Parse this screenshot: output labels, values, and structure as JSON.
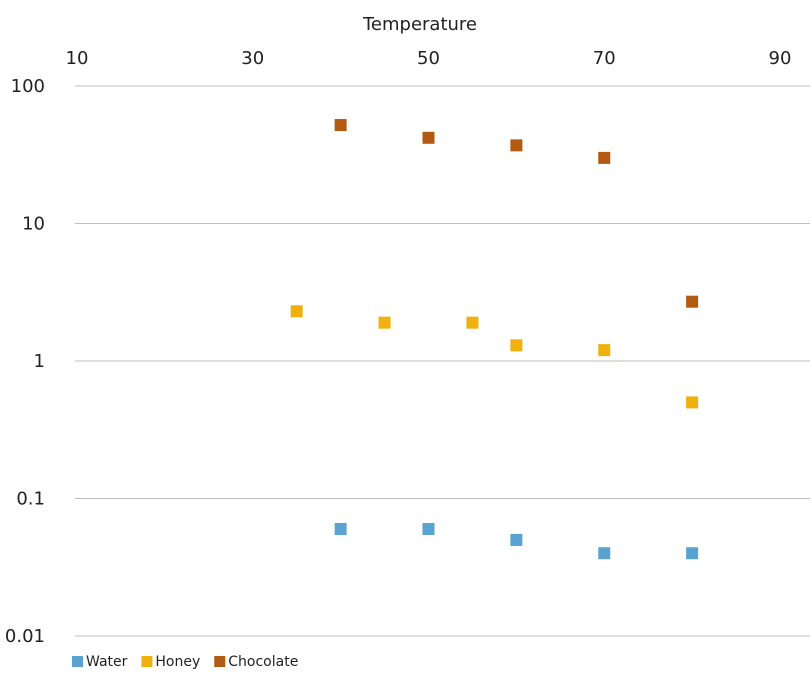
{
  "chart_data": {
    "type": "scatter",
    "xlabel": "Temperature",
    "ylabel": "",
    "x_axis_position": "top",
    "xlim": [
      10,
      90
    ],
    "x_ticks": [
      10,
      30,
      50,
      70,
      90
    ],
    "x_tick_labels": [
      "10",
      "30",
      "50",
      "70",
      "90"
    ],
    "y_scale": "log",
    "ylim": [
      0.01,
      100
    ],
    "y_ticks": [
      0.01,
      0.1,
      1,
      10,
      100
    ],
    "y_tick_labels": [
      "0.01",
      "0.1",
      "1",
      "10",
      "100"
    ],
    "grid": "horizontal",
    "legend_position": "bottom-left",
    "marker": "square",
    "series": [
      {
        "name": "Water",
        "color": "#5aa2cf",
        "points": [
          {
            "x": 40,
            "y": 0.06
          },
          {
            "x": 50,
            "y": 0.06
          },
          {
            "x": 60,
            "y": 0.05
          },
          {
            "x": 70,
            "y": 0.04
          },
          {
            "x": 80,
            "y": 0.04
          }
        ]
      },
      {
        "name": "Honey",
        "color": "#f0b10e",
        "points": [
          {
            "x": 35,
            "y": 2.3
          },
          {
            "x": 45,
            "y": 1.9
          },
          {
            "x": 55,
            "y": 1.9
          },
          {
            "x": 60,
            "y": 1.3
          },
          {
            "x": 70,
            "y": 1.2
          },
          {
            "x": 80,
            "y": 0.5
          }
        ]
      },
      {
        "name": "Chocolate",
        "color": "#b35a12",
        "points": [
          {
            "x": 40,
            "y": 52
          },
          {
            "x": 50,
            "y": 42
          },
          {
            "x": 60,
            "y": 37
          },
          {
            "x": 70,
            "y": 30
          },
          {
            "x": 80,
            "y": 2.7
          }
        ]
      }
    ]
  }
}
